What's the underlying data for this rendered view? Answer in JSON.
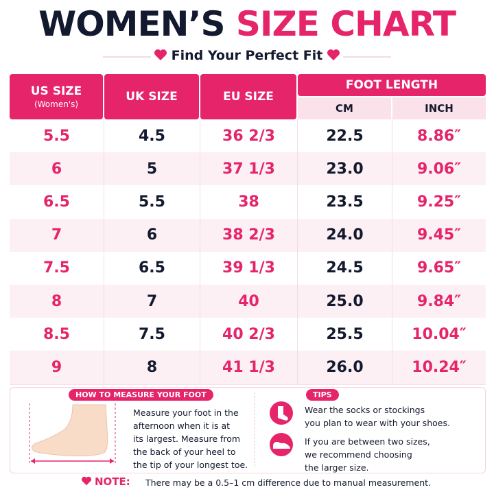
{
  "title": {
    "part1": "WOMEN’S",
    "part2": "SIZE CHART"
  },
  "subtitle": "Find Your Perfect Fit",
  "table": {
    "headers": {
      "us": "US SIZE",
      "us_sub": "(Women's)",
      "uk": "UK SIZE",
      "eu": "EU SIZE",
      "foot_length": "FOOT LENGTH",
      "cm": "CM",
      "inch": "INCH"
    },
    "rows": [
      [
        "5.5",
        "4.5",
        "36 2/3",
        "22.5",
        "8.86″"
      ],
      [
        "6",
        "5",
        "37 1/3",
        "23.0",
        "9.06″"
      ],
      [
        "6.5",
        "5.5",
        "38",
        "23.5",
        "9.25″"
      ],
      [
        "7",
        "6",
        "38 2/3",
        "24.0",
        "9.45″"
      ],
      [
        "7.5",
        "6.5",
        "39 1/3",
        "24.5",
        "9.65″"
      ],
      [
        "8",
        "7",
        "40",
        "25.0",
        "9.84″"
      ],
      [
        "8.5",
        "7.5",
        "40 2/3",
        "25.5",
        "10.04″"
      ],
      [
        "9",
        "8",
        "41 1/3",
        "26.0",
        "10.24″"
      ]
    ]
  },
  "measure": {
    "title": "HOW TO MEASURE YOUR FOOT",
    "lines": [
      "Measure your foot in the",
      "afternoon when it is at",
      "its largest. Measure from",
      "the back of your heel to",
      "the tip of your longest toe."
    ]
  },
  "tips": {
    "title": "TIPS",
    "items": [
      {
        "lines": [
          "Wear the socks or stockings",
          "you plan to wear with your shoes."
        ]
      },
      {
        "lines": [
          "If you are between two sizes,",
          "we recommend choosing",
          "the larger size."
        ]
      }
    ]
  },
  "note": {
    "label": "NOTE:",
    "text": "There may be a 0.5–1 cm difference due to manual measurement."
  }
}
